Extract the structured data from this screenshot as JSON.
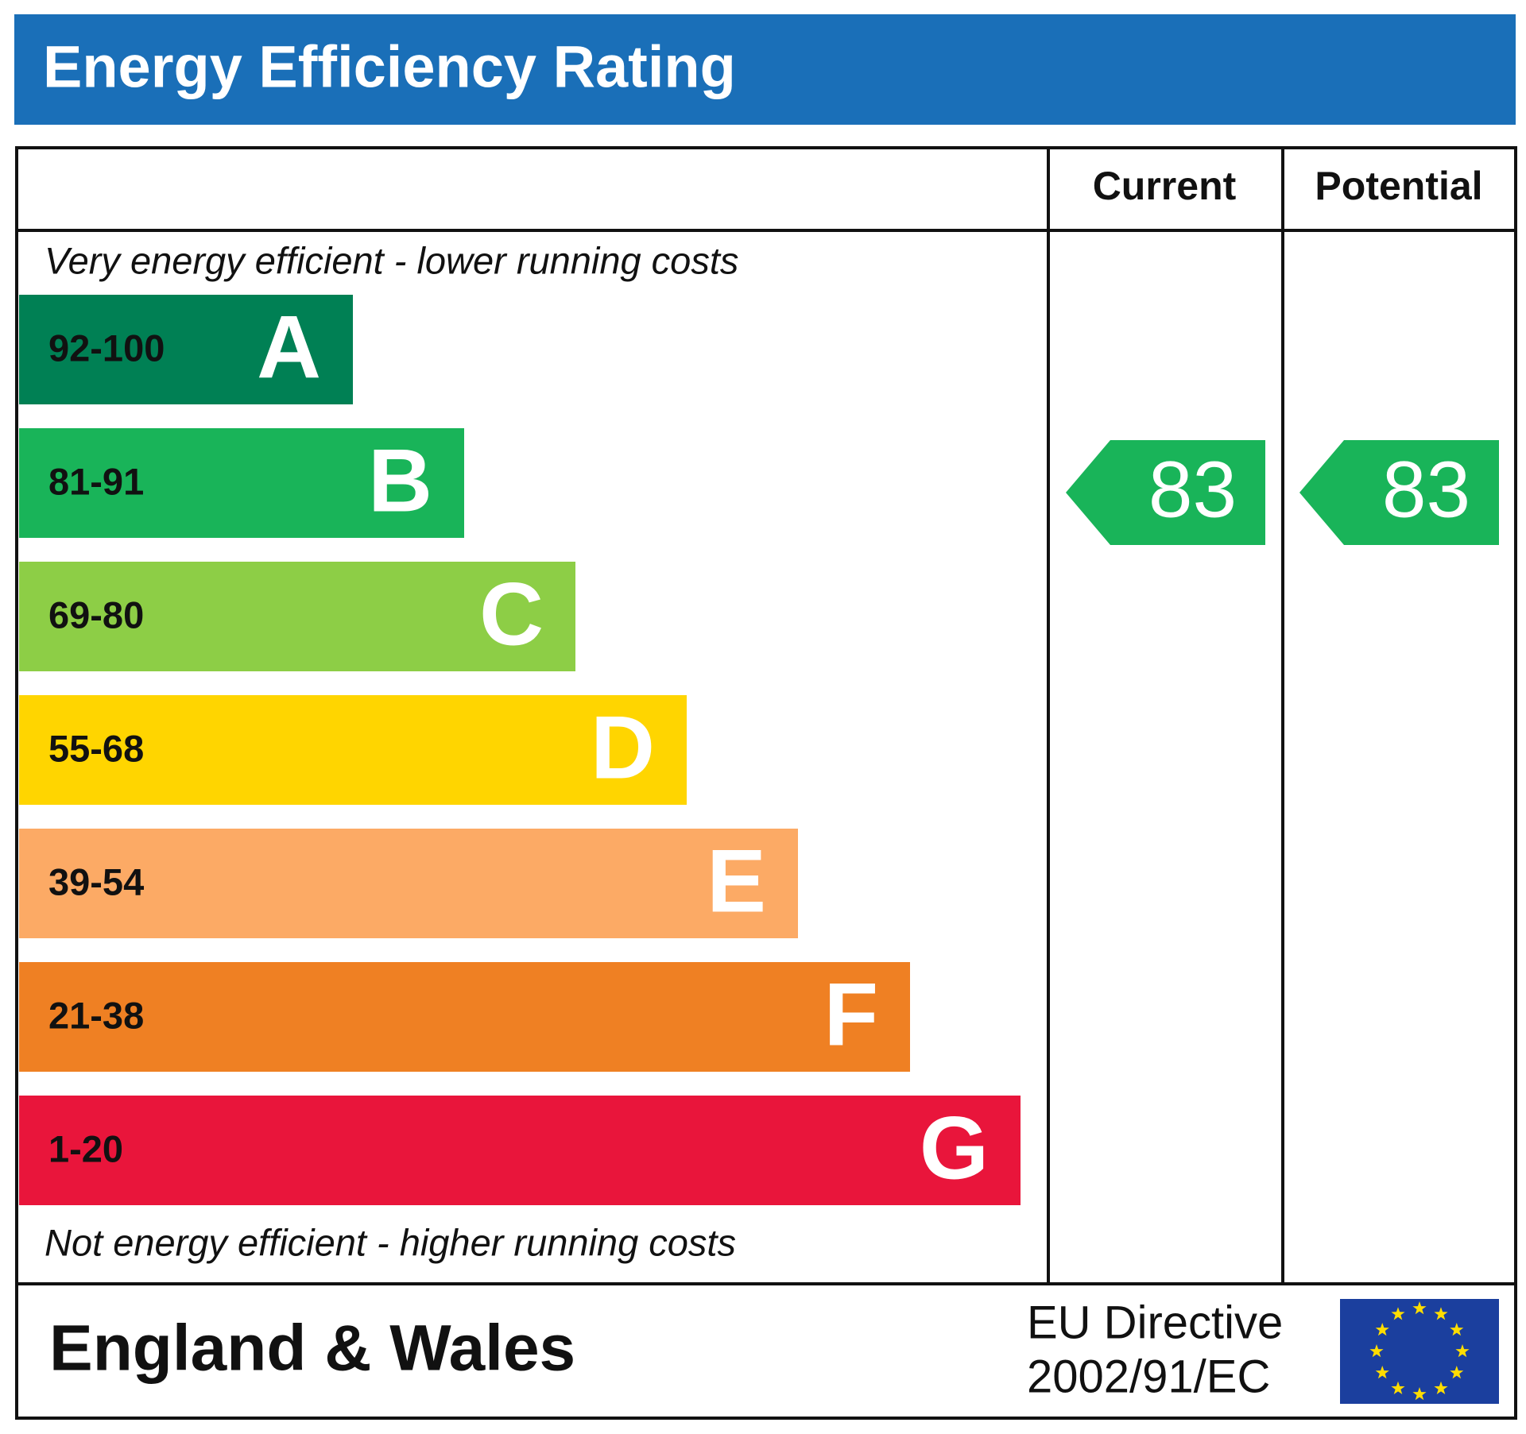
{
  "header": {
    "title": "Energy Efficiency Rating"
  },
  "columns": [
    "Current",
    "Potential"
  ],
  "notes": {
    "top": "Very energy efficient - lower running costs",
    "bottom": "Not energy efficient - higher running costs"
  },
  "bands": [
    {
      "range": "92-100",
      "letter": "A",
      "color": "#008054"
    },
    {
      "range": "81-91",
      "letter": "B",
      "color": "#19b459"
    },
    {
      "range": "69-80",
      "letter": "C",
      "color": "#8dce46"
    },
    {
      "range": "55-68",
      "letter": "D",
      "color": "#ffd500"
    },
    {
      "range": "39-54",
      "letter": "E",
      "color": "#fcaa65"
    },
    {
      "range": "21-38",
      "letter": "F",
      "color": "#ef8023"
    },
    {
      "range": "1-20",
      "letter": "G",
      "color": "#e9153b"
    }
  ],
  "ratings": {
    "current": 83,
    "potential": 83
  },
  "footer": {
    "region": "England & Wales",
    "directive_line1": "EU Directive",
    "directive_line2": "2002/91/EC"
  }
}
